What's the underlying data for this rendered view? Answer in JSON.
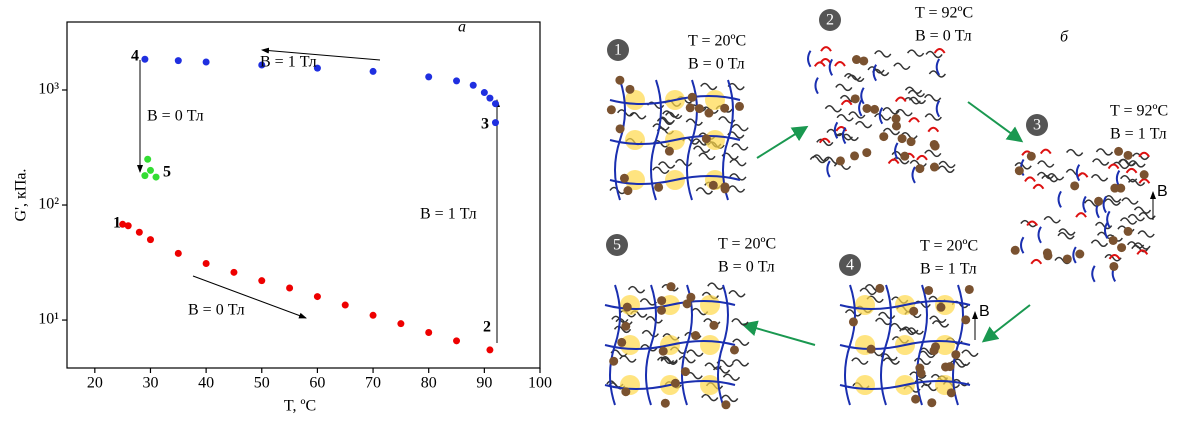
{
  "chart_data": {
    "type": "scatter",
    "panel_label": "а",
    "x_label": "T, ºC",
    "y_label": "G', кПа.",
    "xlim": [
      15,
      100
    ],
    "xticks": [
      20,
      30,
      40,
      50,
      60,
      70,
      80,
      90,
      100
    ],
    "ylim": [
      3.83,
      3900
    ],
    "log_y": true,
    "yticks": [
      {
        "value": 10,
        "label": "10¹"
      },
      {
        "value": 100,
        "label": "10²"
      },
      {
        "value": 1000,
        "label": "10³"
      }
    ],
    "series": [
      {
        "color": "#ee0000",
        "x": [
          25,
          26,
          28,
          30,
          35,
          40,
          45,
          50,
          55,
          60,
          65,
          70,
          75,
          80,
          85,
          91
        ],
        "values": [
          68,
          66,
          58,
          50,
          38,
          31,
          26,
          22,
          19,
          16,
          13.5,
          11,
          9.3,
          7.8,
          6.6,
          5.5
        ]
      },
      {
        "color": "#1f2fe0",
        "x": [
          29,
          35,
          40,
          50,
          60,
          70,
          80,
          85,
          88,
          90,
          91,
          92,
          92
        ],
        "values": [
          1850,
          1800,
          1750,
          1650,
          1550,
          1450,
          1300,
          1200,
          1100,
          950,
          850,
          760,
          520
        ]
      },
      {
        "color": "#33dd33",
        "x": [
          29,
          29.5,
          30,
          31
        ],
        "values": [
          180,
          250,
          200,
          175
        ]
      }
    ],
    "point_labels": [
      "1",
      "2",
      "3",
      "4",
      "5"
    ],
    "annotations": [
      "B = 1 Тл",
      "B = 0 Тл",
      "B = 1 Тл",
      "B = 0 Тл"
    ]
  },
  "diagram": {
    "panel_label": "б",
    "states": [
      {
        "number": "1",
        "T": "T = 20ºC",
        "B": "B = 0 Тл"
      },
      {
        "number": "2",
        "T": "T = 92ºC",
        "B": "B = 0 Тл"
      },
      {
        "number": "3",
        "T": "T = 92ºC",
        "B": "B = 1 Тл",
        "field": "B"
      },
      {
        "number": "4",
        "T": "T = 20ºC",
        "B": "B = 1 Тл",
        "field": "B"
      },
      {
        "number": "5",
        "T": "T = 20ºC",
        "B": "B = 0 Тл"
      }
    ]
  }
}
